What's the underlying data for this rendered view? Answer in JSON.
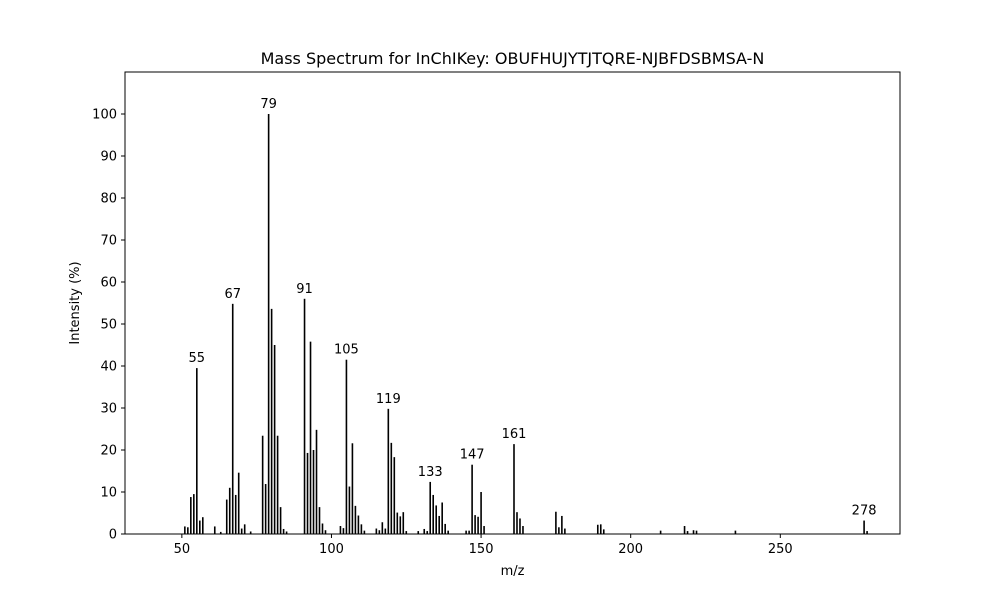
{
  "chart_data": {
    "type": "bar",
    "title": "Mass Spectrum for InChIKey: OBUFHUJYTJTQRE-NJBFDSBMSA-N",
    "xlabel": "m/z",
    "ylabel": "Intensity (%)",
    "xlim": [
      31,
      290
    ],
    "ylim": [
      0,
      110
    ],
    "xticks": [
      50,
      100,
      150,
      200,
      250
    ],
    "yticks": [
      0,
      10,
      20,
      30,
      40,
      50,
      60,
      70,
      80,
      90,
      100
    ],
    "grid": false,
    "bar_color": "#000000",
    "x": [
      51,
      52,
      53,
      54,
      55,
      56,
      57,
      61,
      63,
      65,
      66,
      67,
      68,
      69,
      70,
      71,
      73,
      77,
      78,
      79,
      80,
      81,
      82,
      83,
      84,
      85,
      91,
      92,
      93,
      94,
      95,
      96,
      97,
      98,
      103,
      104,
      105,
      106,
      107,
      108,
      109,
      110,
      111,
      115,
      116,
      117,
      118,
      119,
      120,
      121,
      122,
      123,
      124,
      125,
      129,
      131,
      132,
      133,
      134,
      135,
      136,
      137,
      138,
      139,
      145,
      146,
      147,
      148,
      149,
      150,
      151,
      161,
      162,
      163,
      164,
      175,
      176,
      177,
      178,
      189,
      190,
      191,
      210,
      218,
      219,
      221,
      222,
      235,
      278,
      279
    ],
    "values": [
      1.8,
      1.6,
      8.8,
      9.5,
      39.5,
      3.2,
      4.0,
      1.8,
      0.5,
      8.2,
      11.0,
      54.8,
      9.3,
      14.6,
      1.3,
      2.3,
      0.6,
      23.4,
      11.9,
      100,
      53.6,
      45.0,
      23.4,
      6.4,
      1.2,
      0.6,
      56.0,
      19.3,
      45.8,
      20.0,
      24.8,
      6.4,
      2.5,
      0.9,
      1.9,
      1.4,
      41.5,
      11.3,
      21.6,
      6.7,
      4.4,
      2.3,
      0.8,
      1.3,
      0.9,
      2.8,
      1.3,
      29.8,
      21.7,
      18.3,
      5.1,
      4.2,
      5.2,
      0.7,
      0.7,
      1.2,
      0.7,
      12.4,
      9.3,
      6.8,
      4.3,
      7.5,
      2.4,
      0.8,
      0.8,
      0.8,
      16.5,
      4.5,
      4.1,
      10.0,
      1.9,
      21.4,
      5.2,
      3.7,
      1.9,
      5.3,
      1.6,
      4.3,
      1.3,
      2.2,
      2.3,
      1.1,
      0.8,
      1.9,
      0.7,
      0.9,
      0.8,
      0.8,
      3.2,
      0.7
    ],
    "peak_labels": [
      {
        "x": 55,
        "y": 39.5,
        "text": "55"
      },
      {
        "x": 67,
        "y": 54.8,
        "text": "67"
      },
      {
        "x": 79,
        "y": 100,
        "text": "79"
      },
      {
        "x": 91,
        "y": 56.0,
        "text": "91"
      },
      {
        "x": 105,
        "y": 41.5,
        "text": "105"
      },
      {
        "x": 119,
        "y": 29.8,
        "text": "119"
      },
      {
        "x": 133,
        "y": 12.4,
        "text": "133"
      },
      {
        "x": 147,
        "y": 16.5,
        "text": "147"
      },
      {
        "x": 161,
        "y": 21.4,
        "text": "161"
      },
      {
        "x": 278,
        "y": 3.2,
        "text": "278"
      }
    ]
  }
}
